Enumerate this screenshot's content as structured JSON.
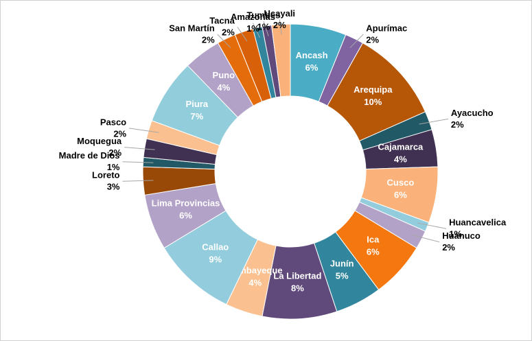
{
  "chart_data": {
    "type": "donut",
    "categories": [
      "Ancash",
      "Apurímac",
      "Arequipa",
      "Ayacucho",
      "Cajamarca",
      "Cusco",
      "Huancavelica",
      "Huánuco",
      "Ica",
      "Junín",
      "La Libertad",
      "Lambayeque",
      "Callao",
      "Lima Provincias",
      "Loreto",
      "Madre de Dios",
      "Moquegua",
      "Pasco",
      "Piura",
      "Puno",
      "San Martín",
      "Tacna",
      "Amazonas",
      "Tumbes",
      "Ucayali"
    ],
    "values": [
      6,
      2,
      10,
      2,
      4,
      6,
      1,
      2,
      6,
      5,
      8,
      4,
      9,
      6,
      3,
      1,
      2,
      2,
      7,
      4,
      2,
      2,
      1,
      1,
      2
    ],
    "value_labels": [
      "6%",
      "2%",
      "10%",
      "2%",
      "4%",
      "6%",
      "1%",
      "2%",
      "6%",
      "5%",
      "8%",
      "4%",
      "9%",
      "6%",
      "3%",
      "1%",
      "2%",
      "2%",
      "7%",
      "4%",
      "2%",
      "2%",
      "1%",
      "1%",
      "2%"
    ],
    "colors": [
      "#4bacc6",
      "#8064a2",
      "#b65708",
      "#215967",
      "#403152",
      "#fab27a",
      "#93cddd",
      "#b3a2c7",
      "#f4780f",
      "#31859c",
      "#604a7b",
      "#fac090",
      "#93cddd",
      "#b3a2c7",
      "#984807",
      "#215967",
      "#403152",
      "#fac090",
      "#92cddc",
      "#b3a2c7",
      "#e46c0a",
      "#d86008",
      "#31859c",
      "#604a7b",
      "#fab27a"
    ]
  }
}
